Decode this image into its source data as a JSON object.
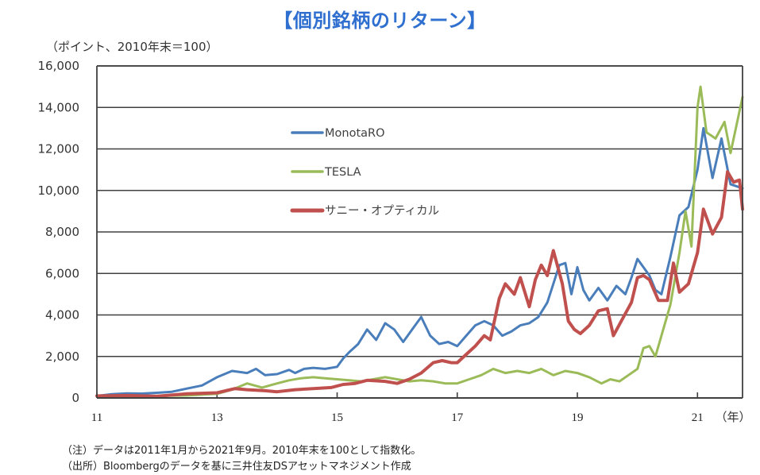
{
  "title": "【個別銘柄のリターン】",
  "unit_label": "（ポイント、2010年末＝100）",
  "notes": [
    "（注）データは2011年1月から2021年9月。2010年末を100として指数化。",
    "（出所）Bloombergのデータを基に三井住友DSアセットマネジメント作成"
  ],
  "chart_data": {
    "type": "line",
    "title": "【個別銘柄のリターン】",
    "ylabel": "（ポイント、2010年末＝100）",
    "xlabel": "（年）",
    "ylim": [
      0,
      16000
    ],
    "xlim": [
      2011.0,
      2021.75
    ],
    "yticks": [
      0,
      2000,
      4000,
      6000,
      8000,
      10000,
      12000,
      14000,
      16000
    ],
    "ytick_labels": [
      "0",
      "2,000",
      "4,000",
      "6,000",
      "8,000",
      "10,000",
      "12,000",
      "14,000",
      "16,000"
    ],
    "xticks": [
      2011,
      2013,
      2015,
      2017,
      2019,
      2021
    ],
    "xtick_labels": [
      "11",
      "13",
      "15",
      "17",
      "19",
      "21"
    ],
    "xunit_label": "（年）",
    "grid": true,
    "legend_position": "upper-left-center",
    "series": [
      {
        "name": "MonotaRO",
        "color": "#4a7ebb",
        "x": [
          2011.0,
          2011.25,
          2011.5,
          2011.75,
          2012.0,
          2012.25,
          2012.5,
          2012.75,
          2013.0,
          2013.25,
          2013.5,
          2013.65,
          2013.8,
          2014.0,
          2014.2,
          2014.3,
          2014.45,
          2014.6,
          2014.8,
          2015.0,
          2015.1,
          2015.2,
          2015.35,
          2015.5,
          2015.65,
          2015.8,
          2015.95,
          2016.1,
          2016.25,
          2016.4,
          2016.55,
          2016.7,
          2016.85,
          2017.0,
          2017.15,
          2017.3,
          2017.45,
          2017.6,
          2017.75,
          2017.9,
          2018.05,
          2018.2,
          2018.35,
          2018.5,
          2018.6,
          2018.7,
          2018.8,
          2018.9,
          2019.0,
          2019.1,
          2019.2,
          2019.35,
          2019.5,
          2019.65,
          2019.8,
          2019.9,
          2020.0,
          2020.1,
          2020.2,
          2020.3,
          2020.4,
          2020.55,
          2020.7,
          2020.85,
          2021.0,
          2021.1,
          2021.25,
          2021.4,
          2021.55,
          2021.75
        ],
        "values": [
          100,
          180,
          220,
          210,
          250,
          300,
          450,
          600,
          1000,
          1300,
          1200,
          1400,
          1100,
          1150,
          1350,
          1200,
          1400,
          1450,
          1400,
          1500,
          1900,
          2200,
          2600,
          3300,
          2800,
          3600,
          3300,
          2700,
          3300,
          3900,
          3000,
          2600,
          2700,
          2500,
          3000,
          3500,
          3700,
          3500,
          3000,
          3200,
          3500,
          3600,
          3900,
          4600,
          5500,
          6400,
          6500,
          5000,
          6300,
          5200,
          4700,
          5300,
          4700,
          5400,
          5000,
          5800,
          6700,
          6300,
          5900,
          5200,
          5000,
          6800,
          8800,
          9200,
          11000,
          13000,
          10600,
          12500,
          10300,
          10100
        ]
      },
      {
        "name": "TESLA",
        "color": "#9bbb59",
        "x": [
          2011.0,
          2011.5,
          2012.0,
          2012.5,
          2013.0,
          2013.25,
          2013.5,
          2013.75,
          2014.0,
          2014.2,
          2014.4,
          2014.6,
          2014.8,
          2015.0,
          2015.2,
          2015.4,
          2015.6,
          2015.8,
          2016.0,
          2016.2,
          2016.4,
          2016.6,
          2016.8,
          2017.0,
          2017.2,
          2017.4,
          2017.6,
          2017.8,
          2018.0,
          2018.2,
          2018.4,
          2018.6,
          2018.8,
          2019.0,
          2019.2,
          2019.4,
          2019.55,
          2019.7,
          2019.85,
          2020.0,
          2020.1,
          2020.2,
          2020.3,
          2020.4,
          2020.55,
          2020.7,
          2020.8,
          2020.9,
          2021.0,
          2021.05,
          2021.15,
          2021.3,
          2021.45,
          2021.55,
          2021.75
        ],
        "values": [
          100,
          80,
          100,
          120,
          200,
          400,
          700,
          500,
          700,
          850,
          950,
          1000,
          950,
          900,
          850,
          800,
          900,
          1000,
          900,
          800,
          850,
          800,
          700,
          700,
          900,
          1100,
          1400,
          1200,
          1300,
          1200,
          1400,
          1100,
          1300,
          1200,
          1000,
          700,
          900,
          800,
          1100,
          1400,
          2400,
          2500,
          2000,
          3000,
          4500,
          7000,
          9000,
          7300,
          14000,
          15000,
          12800,
          12500,
          13300,
          11800,
          14500
        ]
      },
      {
        "name": "サニー・オプティカル",
        "color": "#c0504d",
        "x": [
          2011.0,
          2011.5,
          2012.0,
          2012.5,
          2013.0,
          2013.3,
          2013.5,
          2013.8,
          2014.0,
          2014.3,
          2014.6,
          2014.9,
          2015.1,
          2015.3,
          2015.5,
          2015.8,
          2016.0,
          2016.2,
          2016.4,
          2016.6,
          2016.75,
          2016.9,
          2017.0,
          2017.15,
          2017.3,
          2017.45,
          2017.55,
          2017.7,
          2017.8,
          2017.95,
          2018.05,
          2018.2,
          2018.3,
          2018.4,
          2018.5,
          2018.6,
          2018.75,
          2018.85,
          2018.95,
          2019.05,
          2019.2,
          2019.35,
          2019.5,
          2019.6,
          2019.75,
          2019.9,
          2020.0,
          2020.1,
          2020.2,
          2020.35,
          2020.5,
          2020.6,
          2020.7,
          2020.85,
          2021.0,
          2021.1,
          2021.25,
          2021.4,
          2021.5,
          2021.6,
          2021.7,
          2021.75
        ],
        "values": [
          100,
          120,
          80,
          200,
          250,
          450,
          400,
          350,
          300,
          400,
          450,
          500,
          650,
          700,
          850,
          800,
          700,
          900,
          1200,
          1700,
          1800,
          1700,
          1700,
          2100,
          2500,
          3000,
          2800,
          4800,
          5500,
          5000,
          5800,
          4400,
          5700,
          6400,
          5900,
          7100,
          5500,
          3700,
          3300,
          3100,
          3500,
          4200,
          4300,
          3000,
          3800,
          4600,
          5800,
          5900,
          5700,
          4700,
          4700,
          6500,
          5100,
          5500,
          7000,
          9100,
          7900,
          8700,
          10900,
          10400,
          10500,
          9100
        ]
      }
    ]
  }
}
